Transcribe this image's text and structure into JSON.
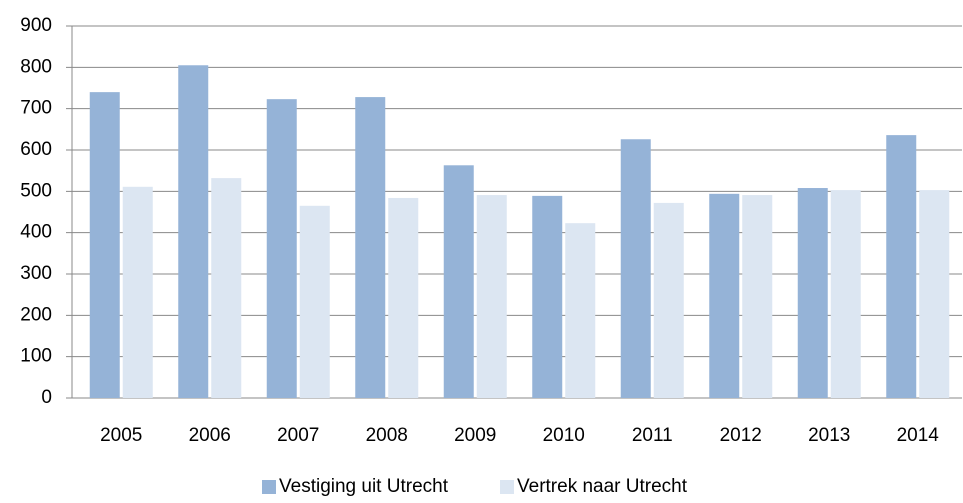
{
  "chart_data": {
    "type": "bar",
    "categories": [
      "2005",
      "2006",
      "2007",
      "2008",
      "2009",
      "2010",
      "2011",
      "2012",
      "2013",
      "2014"
    ],
    "series": [
      {
        "name": "Vestiging uit Utrecht",
        "color": "#95b3d7",
        "values": [
          740,
          805,
          723,
          728,
          563,
          489,
          626,
          494,
          508,
          636
        ]
      },
      {
        "name": "Vertrek naar Utrecht",
        "color": "#dce6f2",
        "values": [
          511,
          532,
          465,
          484,
          491,
          423,
          472,
          491,
          503,
          503
        ]
      }
    ],
    "ylim": [
      0,
      900
    ],
    "yticks": [
      0,
      100,
      200,
      300,
      400,
      500,
      600,
      700,
      800,
      900
    ],
    "grid": true,
    "legend": "bottom"
  }
}
